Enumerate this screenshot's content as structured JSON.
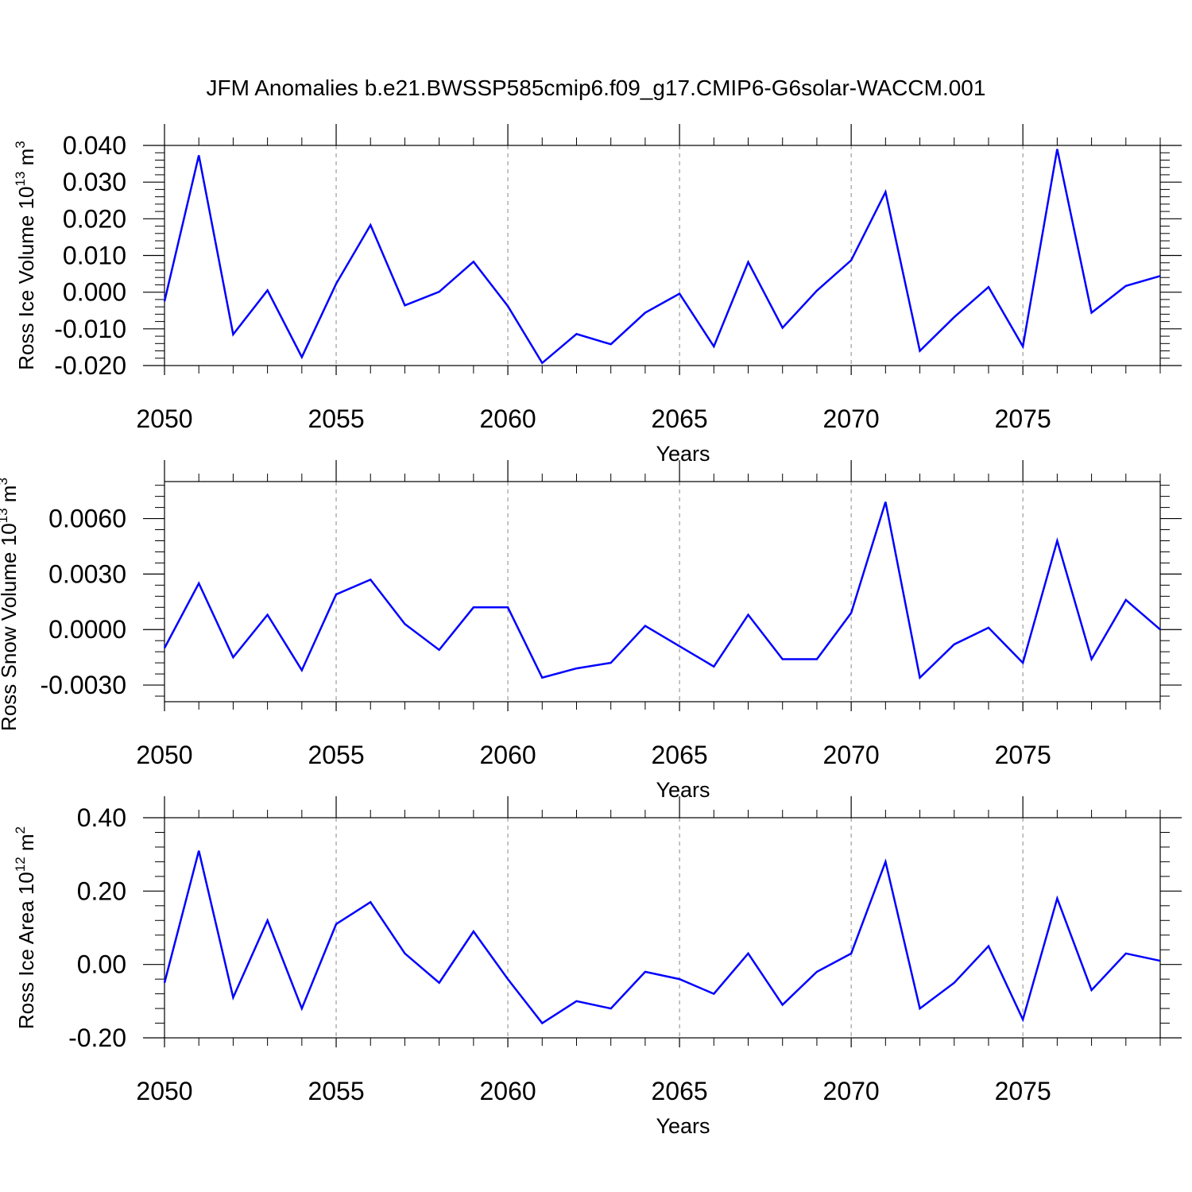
{
  "title": "JFM Anomalies b.e21.BWSSP585cmip6.f09_g17.CMIP6-G6solar-WACCM.001",
  "chart_data": [
    {
      "type": "line",
      "ylabel": "Ross Ice Volume 10",
      "ylabel_exp": "13",
      "ylabel_unit": " m",
      "ylabel_unit_exp": "3",
      "xlabel": "Years",
      "x": [
        2050,
        2051,
        2052,
        2053,
        2054,
        2055,
        2056,
        2057,
        2058,
        2059,
        2060,
        2061,
        2062,
        2063,
        2064,
        2065,
        2066,
        2067,
        2068,
        2069,
        2070,
        2071,
        2072,
        2073,
        2074,
        2075,
        2076,
        2077,
        2078,
        2079
      ],
      "values": [
        -0.0025,
        0.0373,
        -0.0115,
        0.0005,
        -0.0177,
        0.0023,
        0.0183,
        -0.0036,
        0.0001,
        0.0083,
        -0.0038,
        -0.0193,
        -0.0114,
        -0.0142,
        -0.0056,
        -0.0004,
        -0.0148,
        0.0082,
        -0.0097,
        0.0004,
        0.0087,
        0.0273,
        -0.016,
        -0.0068,
        0.0014,
        -0.0148,
        0.039,
        -0.0056,
        0.0017,
        0.0044
      ],
      "ylim": [
        -0.02,
        0.04
      ],
      "xlim": [
        2050,
        2079
      ],
      "yticks": [
        -0.02,
        -0.01,
        0.0,
        0.01,
        0.02,
        0.03,
        0.04
      ],
      "ytick_labels": [
        "-0.020",
        "-0.010",
        "0.000",
        "0.010",
        "0.020",
        "0.030",
        "0.040"
      ],
      "xticks": [
        2050,
        2055,
        2060,
        2065,
        2070,
        2075
      ],
      "xtick_labels": [
        "2050",
        "2055",
        "2060",
        "2065",
        "2070",
        "2075"
      ],
      "color": "#0000ff"
    },
    {
      "type": "line",
      "ylabel": "Ross Snow Volume 10",
      "ylabel_exp": "13",
      "ylabel_unit": " m",
      "ylabel_unit_exp": "3",
      "xlabel": "Years",
      "x": [
        2050,
        2051,
        2052,
        2053,
        2054,
        2055,
        2056,
        2057,
        2058,
        2059,
        2060,
        2061,
        2062,
        2063,
        2064,
        2065,
        2066,
        2067,
        2068,
        2069,
        2070,
        2071,
        2072,
        2073,
        2074,
        2075,
        2076,
        2077,
        2078,
        2079
      ],
      "values": [
        -0.001,
        0.0025,
        -0.0015,
        0.0008,
        -0.0022,
        0.0019,
        0.0027,
        0.0003,
        -0.0011,
        0.0012,
        0.0012,
        -0.0026,
        -0.0021,
        -0.0018,
        0.0002,
        -0.0009,
        -0.002,
        0.0008,
        -0.0016,
        -0.0016,
        0.0009,
        0.0069,
        -0.0026,
        -0.0008,
        0.0001,
        -0.0018,
        0.0048,
        -0.0016,
        0.0016,
        0.0
      ],
      "ylim": [
        -0.0039,
        0.008
      ],
      "xlim": [
        2050,
        2079
      ],
      "yticks": [
        -0.003,
        0.0,
        0.003,
        0.006
      ],
      "ytick_labels": [
        "-0.0030",
        "0.0000",
        "0.0030",
        "0.0060"
      ],
      "xticks": [
        2050,
        2055,
        2060,
        2065,
        2070,
        2075
      ],
      "xtick_labels": [
        "2050",
        "2055",
        "2060",
        "2065",
        "2070",
        "2075"
      ],
      "color": "#0000ff"
    },
    {
      "type": "line",
      "ylabel": "Ross Ice Area 10",
      "ylabel_exp": "12",
      "ylabel_unit": " m",
      "ylabel_unit_exp": "2",
      "xlabel": "Years",
      "x": [
        2050,
        2051,
        2052,
        2053,
        2054,
        2055,
        2056,
        2057,
        2058,
        2059,
        2060,
        2061,
        2062,
        2063,
        2064,
        2065,
        2066,
        2067,
        2068,
        2069,
        2070,
        2071,
        2072,
        2073,
        2074,
        2075,
        2076,
        2077,
        2078,
        2079
      ],
      "values": [
        -0.05,
        0.31,
        -0.09,
        0.12,
        -0.12,
        0.11,
        0.17,
        0.03,
        -0.05,
        0.09,
        -0.04,
        -0.16,
        -0.1,
        -0.12,
        -0.02,
        -0.04,
        -0.08,
        0.03,
        -0.11,
        -0.02,
        0.03,
        0.28,
        -0.12,
        -0.05,
        0.05,
        -0.15,
        0.18,
        -0.07,
        0.03,
        0.01
      ],
      "ylim": [
        -0.2,
        0.4
      ],
      "xlim": [
        2050,
        2079
      ],
      "yticks": [
        -0.2,
        0.0,
        0.2,
        0.4
      ],
      "ytick_labels": [
        "-0.20",
        "0.00",
        "0.20",
        "0.40"
      ],
      "xticks": [
        2050,
        2055,
        2060,
        2065,
        2070,
        2075
      ],
      "xtick_labels": [
        "2050",
        "2055",
        "2060",
        "2065",
        "2070",
        "2075"
      ],
      "color": "#0000ff"
    }
  ]
}
